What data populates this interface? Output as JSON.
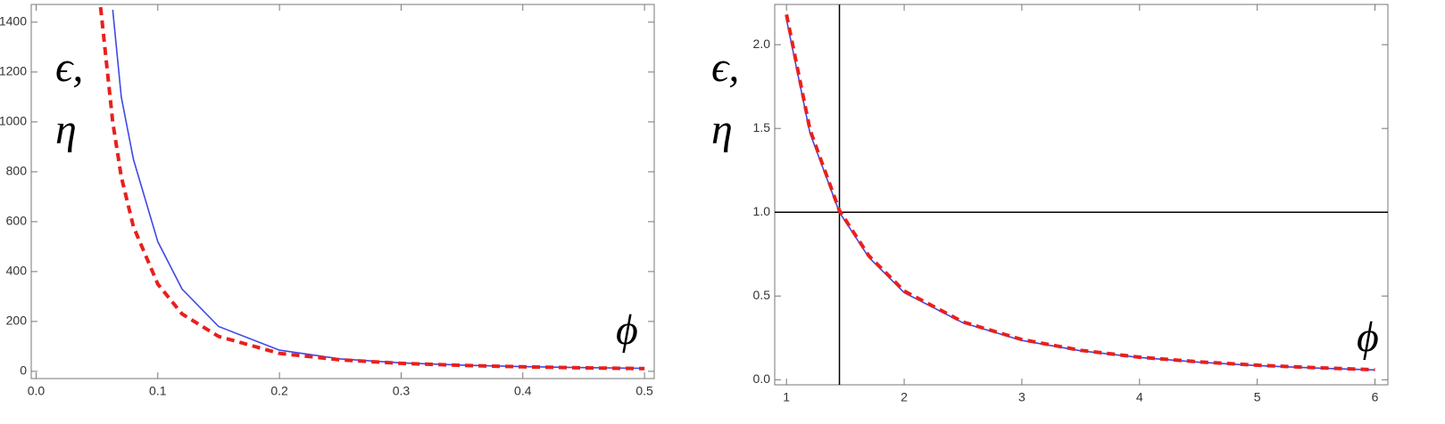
{
  "chart_data": [
    {
      "type": "line",
      "xlabel": "ϕ",
      "ylabel_lines": [
        "ϵ,",
        "η"
      ],
      "x": [
        0.053,
        0.063,
        0.07,
        0.08,
        0.1,
        0.12,
        0.15,
        0.2,
        0.25,
        0.3,
        0.35,
        0.4,
        0.45,
        0.5
      ],
      "series": [
        {
          "color": "#3f48e6",
          "dash": false,
          "values": [
            null,
            1450,
            1100,
            850,
            520,
            330,
            180,
            85,
            50,
            34,
            25,
            19,
            15,
            12
          ]
        },
        {
          "color": "#e8201d",
          "dash": true,
          "values": [
            1460,
            1000,
            780,
            580,
            350,
            230,
            140,
            72,
            46,
            32,
            24,
            18,
            14,
            11
          ]
        }
      ],
      "xlim": [
        -0.004,
        0.508
      ],
      "ylim": [
        -29,
        1471
      ],
      "xticks": [
        {
          "value": 0,
          "label": "0.0"
        },
        0.1,
        0.2,
        0.3,
        0.4,
        0.5
      ],
      "yticks": [
        0,
        200,
        400,
        600,
        800,
        1000,
        1200,
        1400
      ]
    },
    {
      "type": "line",
      "xlabel": "ϕ",
      "ylabel_lines": [
        "ϵ,",
        "η"
      ],
      "x": [
        1,
        1.2,
        1.45,
        1.7,
        2,
        2.5,
        3,
        3.5,
        4,
        4.5,
        5,
        5.5,
        6
      ],
      "series": [
        {
          "color": "#3f48e6",
          "dash": false,
          "values": [
            2.15,
            1.47,
            1.0,
            0.73,
            0.52,
            0.34,
            0.235,
            0.173,
            0.133,
            0.105,
            0.085,
            0.07,
            0.059
          ]
        },
        {
          "color": "#e8201d",
          "dash": true,
          "values": [
            2.18,
            1.49,
            1.01,
            0.74,
            0.53,
            0.345,
            0.24,
            0.176,
            0.135,
            0.107,
            0.087,
            0.072,
            0.06
          ]
        }
      ],
      "hline": {
        "value": 1,
        "label": "1.0"
      },
      "vline": 1.45,
      "xlim": [
        0.9,
        6.11
      ],
      "ylim": [
        -0.03,
        2.24
      ],
      "xticks": [
        1,
        2,
        3,
        4,
        5,
        6
      ],
      "yticks": [
        {
          "value": 0,
          "label": "0.0"
        },
        0.5,
        {
          "value": 1,
          "label": "1.0"
        },
        1.5,
        {
          "value": 2,
          "label": "2.0"
        }
      ]
    }
  ]
}
